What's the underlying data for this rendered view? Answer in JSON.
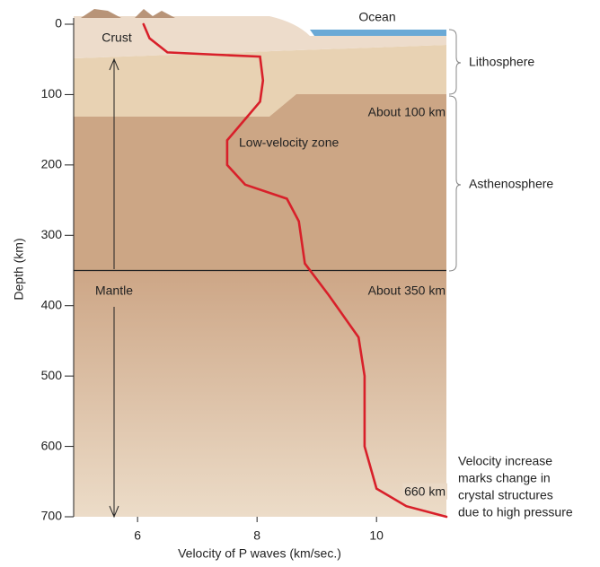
{
  "chart_data": {
    "type": "line",
    "x_label": "Velocity of P waves (km/sec.)",
    "y_label": "Depth (km)",
    "xlim": [
      4.93,
      11.17
    ],
    "xticks": [
      6,
      8,
      10
    ],
    "ylim": [
      0,
      700
    ],
    "yticks": [
      0,
      100,
      200,
      300,
      400,
      500,
      600,
      700
    ],
    "y_inverted": true,
    "color": "#d8202a",
    "x": [
      6.1,
      6.2,
      6.5,
      7.5,
      8.05,
      8.1,
      8.05,
      7.85,
      7.5,
      7.5,
      7.8,
      8.5,
      8.7,
      8.8,
      9.2,
      9.7,
      9.8,
      9.8,
      10.0,
      10.5,
      11.17
    ],
    "values": [
      0,
      20,
      40,
      44,
      46,
      80,
      110,
      130,
      165,
      200,
      228,
      248,
      280,
      340,
      385,
      445,
      500,
      600,
      660,
      685,
      700
    ],
    "boundary_depth": 350,
    "annotations": {
      "ocean": "Ocean",
      "crust": "Crust",
      "lithosphere": "Lithosphere",
      "about100": "About 100 km",
      "lvz": "Low-velocity zone",
      "asthenosphere": "Asthenosphere",
      "mantle": "Mantle",
      "about350": "About 350 km",
      "km660": "660 km",
      "note": [
        "Velocity increase",
        "marks change in",
        "crystal structures",
        "due to high pressure"
      ]
    }
  }
}
